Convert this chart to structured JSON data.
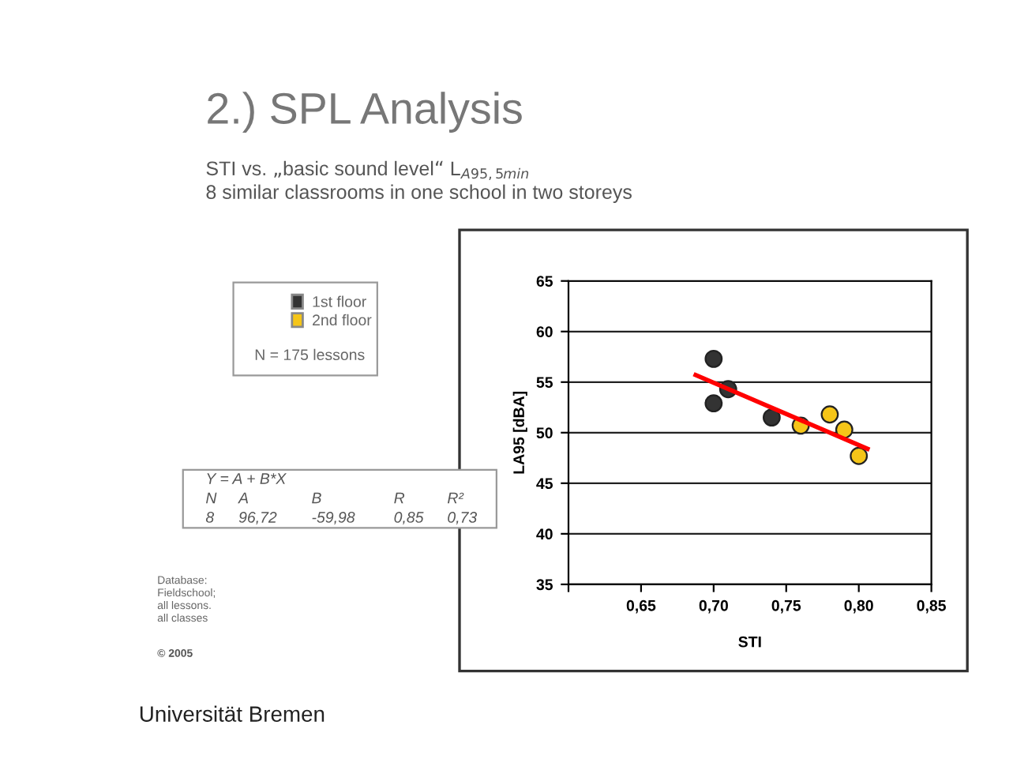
{
  "chart_data": {
    "type": "scatter",
    "title": "2.) SPL Analysis",
    "subtitle": "STI vs. „basic sound level“ L$_{A95,5min}$\n8 similar classrooms in one school in two storeys",
    "xlabel": "STI",
    "ylabel": "LA95 [dBA]",
    "xlim": [
      0.6,
      0.85
    ],
    "xticks": [
      {
        "value": 0.6,
        "label": null
      },
      {
        "value": 0.65,
        "label": "0,65"
      },
      {
        "value": 0.7,
        "label": "0,70"
      },
      {
        "value": 0.75,
        "label": "0,75"
      },
      {
        "value": 0.8,
        "label": "0,80"
      },
      {
        "value": 0.85,
        "label": "0,85"
      }
    ],
    "ylim": [
      35,
      65
    ],
    "yticks": [
      35,
      40,
      45,
      50,
      55,
      60,
      65
    ],
    "grid": "y",
    "legend": "top left",
    "marker": "circle",
    "series": [
      {
        "name": "1st floor",
        "color": "#333333",
        "x": [
          0.7,
          0.7,
          0.71,
          0.74
        ],
        "values": [
          57.3,
          52.9,
          54.3,
          51.5
        ]
      },
      {
        "name": "2nd floor",
        "color": "#f5c518",
        "x": [
          0.76,
          0.78,
          0.79,
          0.8
        ],
        "values": [
          50.7,
          51.8,
          50.3,
          47.7
        ]
      },
      {
        "type": "line",
        "color": "#ff0000",
        "marker": "none",
        "x": [
          0.6876,
          0.806
        ],
        "values": [
          55.7,
          48.4
        ]
      }
    ],
    "annotations": [
      "N = 175 lessons",
      "Y = A + B*X",
      "N",
      "A",
      "B",
      "R",
      "R²",
      "8",
      "96,72",
      "-59,98",
      "0,85",
      "0,73",
      "Database:\nFieldschool;\nall lessons.\nall classes",
      "© 2005",
      "Universität Bremen"
    ]
  }
}
